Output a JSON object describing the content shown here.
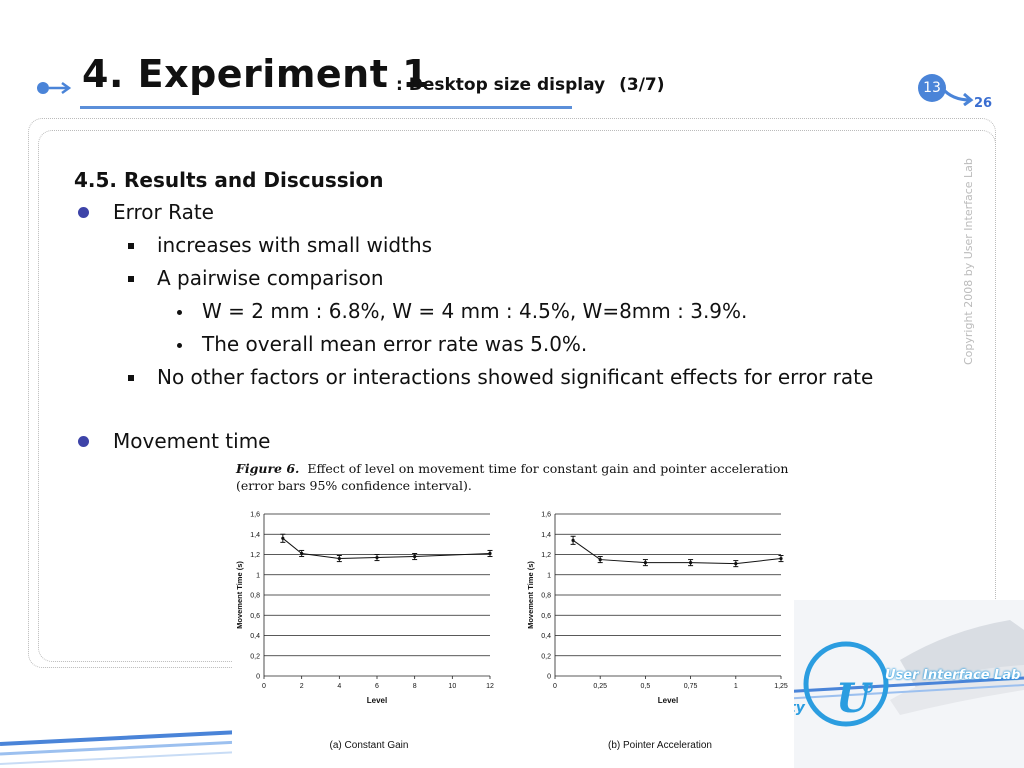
{
  "header": {
    "title": "4. Experiment 1",
    "subtitle": ": Desktop size display",
    "part": "(3/7)",
    "page_current": "13",
    "page_total": "26"
  },
  "copyright": "Copyright 2008 by User Interface Lab",
  "content": {
    "heading": "4.5. Results and Discussion",
    "bullet1": "Error Rate",
    "sub1": "increases with small widths",
    "sub2": "A pairwise comparison",
    "subsub1": "W = 2 mm : 6.8%, W = 4 mm : 4.5%, W=8mm : 3.9%.",
    "subsub2": "The overall mean error rate was 5.0%.",
    "sub3": "No other factors or interactions showed significant effects for error rate",
    "bullet2": "Movement time"
  },
  "figure": {
    "label": "Figure 6.",
    "caption": "Effect of level on movement time for constant gain and pointer acceleration (error bars 95% confidence interval)."
  },
  "logo": {
    "text": "User Interface Lab",
    "partial": "ty"
  },
  "chart_data": [
    {
      "type": "line",
      "title": "(a) Constant Gain",
      "xlabel": "Level",
      "ylabel": "Movement Time (s)",
      "xlim": [
        0,
        12
      ],
      "ylim": [
        0,
        1.6
      ],
      "xticks": [
        "0",
        "2",
        "4",
        "6",
        "8",
        "10",
        "12"
      ],
      "yticks": [
        "0",
        "0,2",
        "0,4",
        "0,6",
        "0,8",
        "1",
        "1,2",
        "1,4",
        "1,6"
      ],
      "x": [
        1,
        2,
        4,
        6,
        8,
        12
      ],
      "y": [
        1.36,
        1.21,
        1.16,
        1.17,
        1.18,
        1.21
      ],
      "err": [
        0.04,
        0.03,
        0.03,
        0.03,
        0.03,
        0.03
      ],
      "grid": true
    },
    {
      "type": "line",
      "title": "(b) Pointer Acceleration",
      "xlabel": "Level",
      "ylabel": "Movement Time (s)",
      "xlim": [
        0,
        1.25
      ],
      "ylim": [
        0,
        1.6
      ],
      "xticks": [
        "0",
        "0,25",
        "0,5",
        "0,75",
        "1",
        "1,25"
      ],
      "yticks": [
        "0",
        "0,2",
        "0,4",
        "0,6",
        "0,8",
        "1",
        "1,2",
        "1,4",
        "1,6"
      ],
      "x": [
        0.1,
        0.25,
        0.5,
        0.75,
        1,
        1.25
      ],
      "y": [
        1.34,
        1.15,
        1.12,
        1.12,
        1.11,
        1.16
      ],
      "err": [
        0.04,
        0.03,
        0.03,
        0.03,
        0.03,
        0.03
      ],
      "grid": true
    }
  ]
}
